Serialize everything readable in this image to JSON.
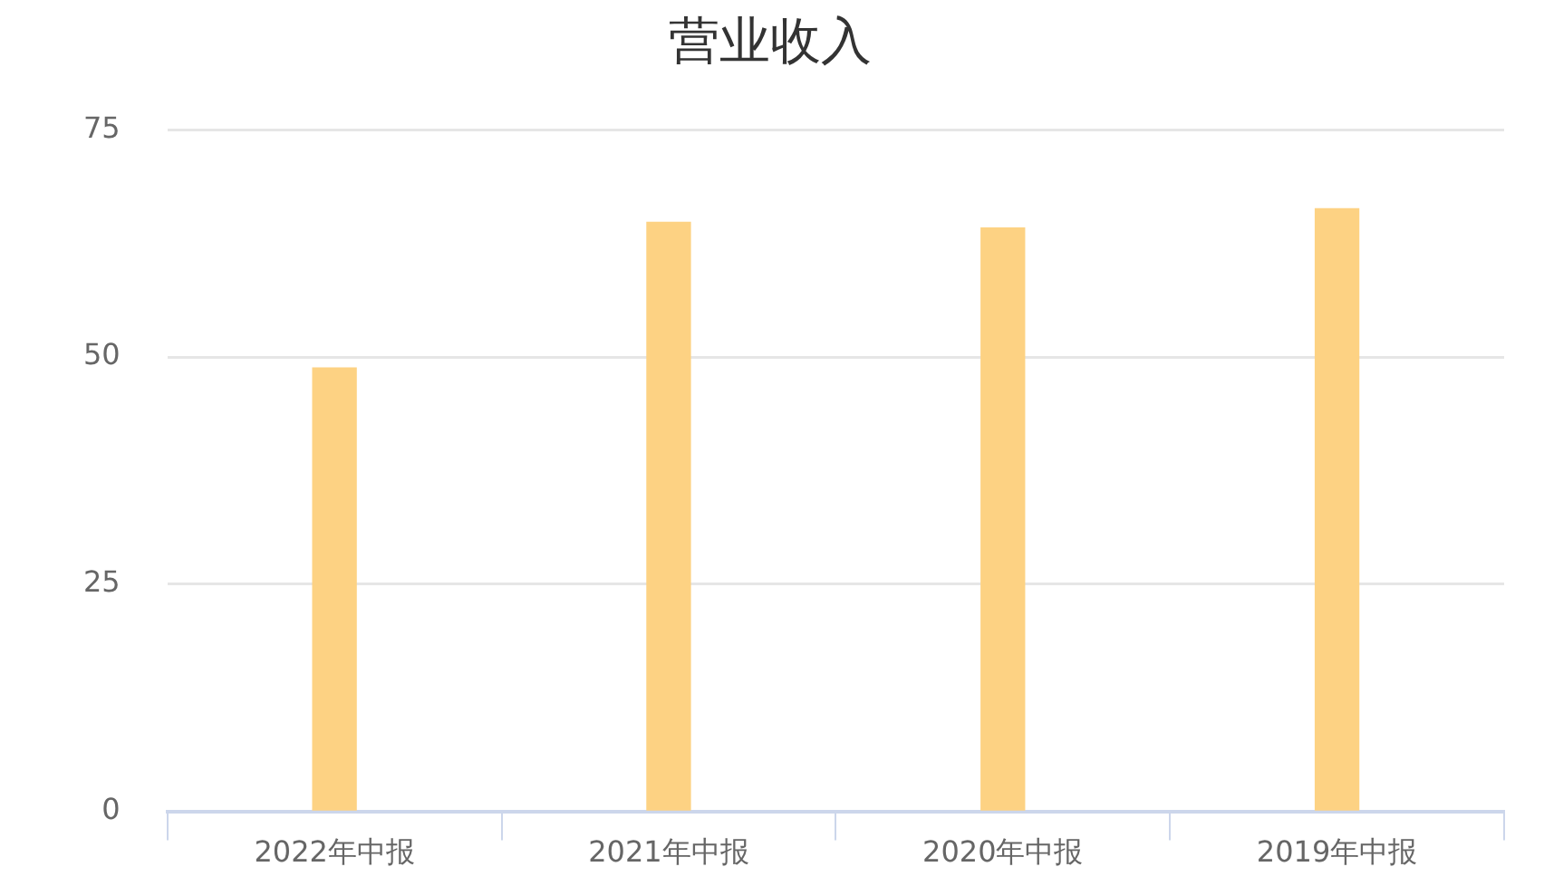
{
  "chart_data": {
    "type": "bar",
    "title": "营业收入",
    "categories": [
      "2022年中报",
      "2021年中报",
      "2020年中报",
      "2019年中报"
    ],
    "values": [
      48.8,
      64.8,
      64.2,
      66.3
    ],
    "color": "#fdd283",
    "ylim": [
      0,
      75
    ],
    "yticks": [
      0,
      25,
      50,
      75
    ],
    "grid": "y",
    "legend": false
  }
}
